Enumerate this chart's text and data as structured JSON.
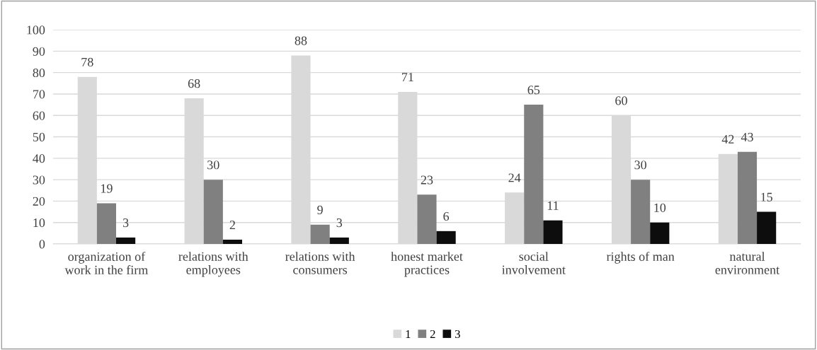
{
  "chart_data": {
    "type": "bar",
    "categories": [
      "organization of\nwork in the firm",
      "relations with\nemployees",
      "relations with\nconsumers",
      "honest market\npractices",
      "social\ninvolvement",
      "rights of man",
      "natural\nenvironment"
    ],
    "series": [
      {
        "name": "1",
        "color": "#d9d9d9",
        "values": [
          78,
          68,
          88,
          71,
          24,
          60,
          42
        ]
      },
      {
        "name": "2",
        "color": "#808080",
        "values": [
          19,
          30,
          9,
          23,
          65,
          30,
          43
        ]
      },
      {
        "name": "3",
        "color": "#0d0d0d",
        "values": [
          3,
          2,
          3,
          6,
          11,
          10,
          15
        ]
      }
    ],
    "ylim": [
      0,
      100
    ],
    "yticks": [
      0,
      10,
      20,
      30,
      40,
      50,
      60,
      70,
      80,
      90,
      100
    ],
    "grid": "y",
    "legend": "bottom",
    "data_labels": true
  }
}
